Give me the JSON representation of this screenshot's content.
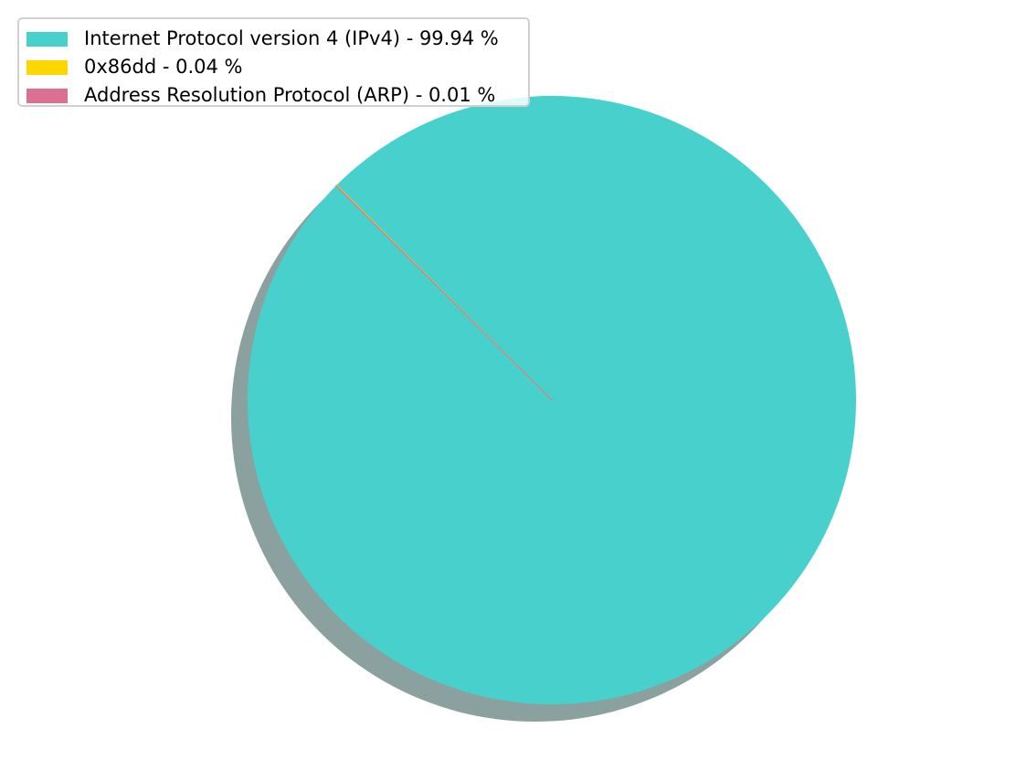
{
  "chart_data": {
    "type": "pie",
    "title": "",
    "legend_position": "top-left",
    "shadow": true,
    "slices": [
      {
        "label": "Internet Protocol version 4 (IPv4)",
        "value": 99.94,
        "legend": "Internet Protocol version 4 (IPv4) - 99.94 %",
        "color": "#48d1cc"
      },
      {
        "label": "0x86dd",
        "value": 0.04,
        "legend": "0x86dd - 0.04 %",
        "color": "#ffd700"
      },
      {
        "label": "Address Resolution Protocol (ARP)",
        "value": 0.01,
        "legend": "Address Resolution Protocol (ARP) - 0.01 %",
        "color": "#db7093"
      }
    ]
  }
}
